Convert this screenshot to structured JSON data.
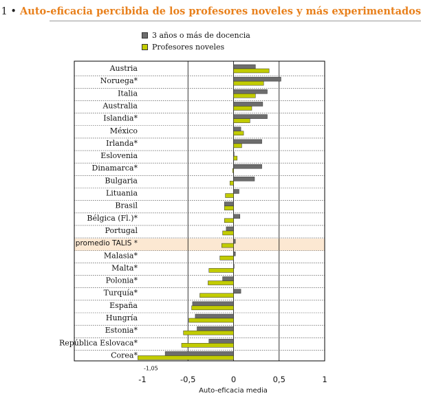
{
  "header": {
    "number": "1 •",
    "title": "Auto-eficacia percibida de los profesores noveles y más experimentados"
  },
  "chart_data": {
    "type": "bar",
    "orientation": "horizontal",
    "categories": [
      "Austria",
      "Noruega*",
      "Italia",
      "Australia",
      "Islandia*",
      "México",
      "Irlanda*",
      "Eslovenia",
      "Dinamarca*",
      "Bulgaria",
      "Lituania",
      "Brasil",
      "Bélgica (Fl.)*",
      "Portugal",
      "promedio TALIS *",
      "Malasia*",
      "Malta*",
      "Polonia*",
      "Turquía*",
      "España",
      "Hungría",
      "Estonia*",
      "República Eslovaca*",
      "Corea*"
    ],
    "highlight_category": "promedio TALIS *",
    "series": [
      {
        "name": "3 años o más de docencia",
        "color": "#6d6d6d",
        "values": [
          0.24,
          0.52,
          0.37,
          0.32,
          0.37,
          0.08,
          0.31,
          0.0,
          0.31,
          0.23,
          0.06,
          -0.1,
          0.07,
          -0.08,
          0.02,
          0.02,
          0.0,
          -0.12,
          0.08,
          -0.45,
          -0.42,
          -0.4,
          -0.27,
          -0.75
        ]
      },
      {
        "name": "Profesores noveles",
        "color": "#c2cc00",
        "values": [
          0.39,
          0.33,
          0.24,
          0.2,
          0.18,
          0.11,
          0.09,
          0.04,
          -0.01,
          -0.04,
          -0.09,
          -0.1,
          -0.1,
          -0.12,
          -0.13,
          -0.15,
          -0.27,
          -0.28,
          -0.37,
          -0.46,
          -0.49,
          -0.55,
          -0.57,
          -1.05
        ]
      }
    ],
    "xlim": [
      -1.0,
      1.0
    ],
    "xticks": [
      -1,
      -0.5,
      0,
      0.5,
      1
    ],
    "xtick_labels": [
      "-1",
      "-0,5",
      "0",
      "0,5",
      "1"
    ],
    "xlabel": "Auto-eficacia media",
    "annotations": [
      {
        "category": "Corea*",
        "text": "-1,05"
      }
    ],
    "legend_position": "top"
  }
}
